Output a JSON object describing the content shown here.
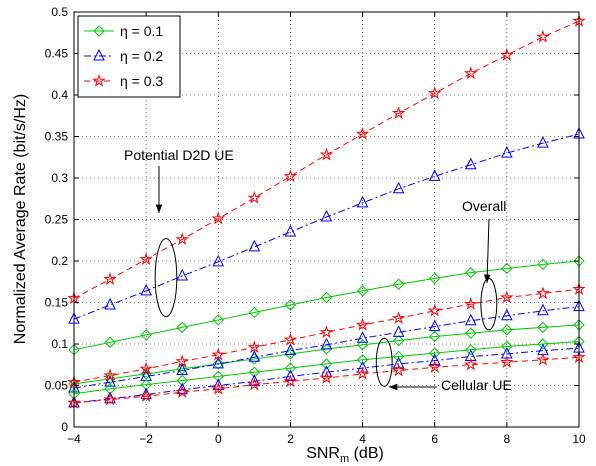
{
  "chart_data": {
    "type": "line",
    "xlabel_main": "SNR",
    "xlabel_sub": "m",
    "xlabel_unit": " (dB)",
    "ylabel": "Normalized Average Rate (bit/s/Hz)",
    "xlim": [
      -4,
      10
    ],
    "ylim": [
      0,
      0.5
    ],
    "xticks": [
      -4,
      -2,
      0,
      2,
      4,
      6,
      8,
      10
    ],
    "yticks": [
      0,
      0.05,
      0.1,
      0.15,
      0.2,
      0.25,
      0.3,
      0.35,
      0.4,
      0.45,
      0.5
    ],
    "ytick_labels": [
      "0",
      "0.05",
      "0.1",
      "0.15",
      "0.2",
      "0.25",
      "0.3",
      "0.35",
      "0.4",
      "0.45",
      "0.5"
    ],
    "grid": true,
    "legend_position": "top-left",
    "x": [
      -4,
      -3,
      -2,
      -1,
      0,
      1,
      2,
      3,
      4,
      5,
      6,
      7,
      8,
      9,
      10
    ],
    "series": [
      {
        "name": "η = 0.1",
        "group": "Potential D2D UE",
        "color": "#00cc00",
        "marker": "diamond",
        "dash": "solid",
        "values": [
          0.093,
          0.102,
          0.111,
          0.12,
          0.129,
          0.138,
          0.147,
          0.156,
          0.164,
          0.172,
          0.179,
          0.186,
          0.191,
          0.196,
          0.2
        ]
      },
      {
        "name": "η = 0.2",
        "group": "Potential D2D UE",
        "color": "#0000ff",
        "marker": "triangle",
        "dash": "dashdot",
        "values": [
          0.13,
          0.147,
          0.164,
          0.182,
          0.199,
          0.217,
          0.235,
          0.253,
          0.27,
          0.287,
          0.302,
          0.316,
          0.33,
          0.342,
          0.353
        ]
      },
      {
        "name": "η = 0.3",
        "group": "Potential D2D UE",
        "color": "#ff0000",
        "marker": "star",
        "dash": "dashed",
        "values": [
          0.155,
          0.178,
          0.202,
          0.226,
          0.251,
          0.276,
          0.302,
          0.328,
          0.353,
          0.378,
          0.402,
          0.426,
          0.448,
          0.47,
          0.489
        ]
      },
      {
        "name": "",
        "group": "Overall",
        "color": "#00cc00",
        "marker": "diamond",
        "dash": "solid",
        "values": [
          0.052,
          0.058,
          0.064,
          0.07,
          0.076,
          0.082,
          0.088,
          0.094,
          0.099,
          0.104,
          0.109,
          0.113,
          0.117,
          0.12,
          0.123
        ]
      },
      {
        "name": "",
        "group": "Overall",
        "color": "#0000ff",
        "marker": "triangle",
        "dash": "dashdot",
        "values": [
          0.047,
          0.054,
          0.061,
          0.068,
          0.076,
          0.084,
          0.092,
          0.099,
          0.107,
          0.114,
          0.121,
          0.128,
          0.134,
          0.14,
          0.145
        ]
      },
      {
        "name": "",
        "group": "Overall",
        "color": "#ff0000",
        "marker": "star",
        "dash": "dashed",
        "values": [
          0.054,
          0.062,
          0.07,
          0.079,
          0.087,
          0.096,
          0.105,
          0.114,
          0.123,
          0.131,
          0.14,
          0.148,
          0.156,
          0.161,
          0.166
        ]
      },
      {
        "name": "",
        "group": "Cellular UE",
        "color": "#00cc00",
        "marker": "diamond",
        "dash": "solid",
        "values": [
          0.04,
          0.046,
          0.051,
          0.056,
          0.061,
          0.066,
          0.071,
          0.076,
          0.081,
          0.085,
          0.089,
          0.093,
          0.097,
          0.1,
          0.103
        ]
      },
      {
        "name": "",
        "group": "Cellular UE",
        "color": "#0000ff",
        "marker": "triangle",
        "dash": "dashdot",
        "values": [
          0.029,
          0.034,
          0.039,
          0.045,
          0.05,
          0.055,
          0.061,
          0.066,
          0.071,
          0.076,
          0.08,
          0.085,
          0.088,
          0.092,
          0.095
        ]
      },
      {
        "name": "",
        "group": "Cellular UE",
        "color": "#ff0000",
        "marker": "star",
        "dash": "dashed",
        "values": [
          0.029,
          0.033,
          0.037,
          0.042,
          0.046,
          0.051,
          0.055,
          0.059,
          0.064,
          0.068,
          0.072,
          0.075,
          0.078,
          0.081,
          0.084
        ]
      }
    ],
    "annotations": [
      {
        "text": "Potential D2D UE",
        "ellipse_center": [
          -1.45,
          0.18
        ],
        "ellipse_radius": [
          0.3,
          0.047
        ]
      },
      {
        "text": "Overall",
        "ellipse_center": [
          7.5,
          0.148
        ],
        "ellipse_radius": [
          0.22,
          0.031
        ]
      },
      {
        "text": "Cellular UE",
        "ellipse_center": [
          4.6,
          0.078
        ],
        "ellipse_radius": [
          0.22,
          0.029
        ]
      }
    ]
  }
}
